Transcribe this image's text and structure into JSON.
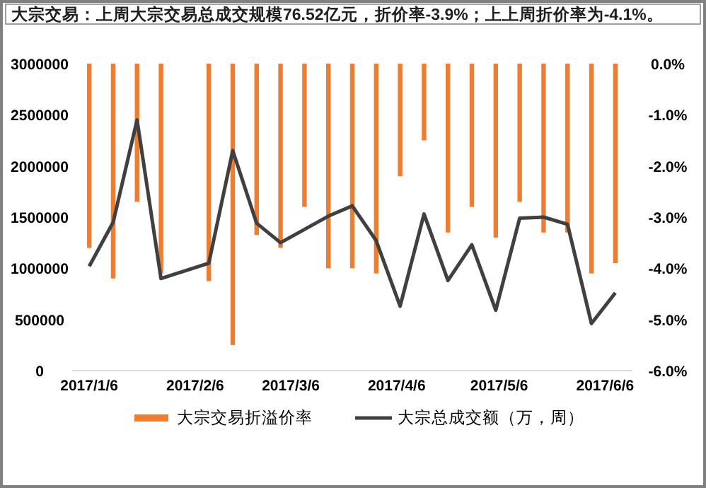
{
  "chart_data": {
    "type": "bar",
    "title": "大宗交易：上周大宗交易总成交规模76.52亿元，折价率-3.9%；上上周折价率为-4.1%。",
    "x": [
      "2017-01-06",
      "2017-01-13",
      "2017-01-20",
      "2017-01-27",
      "2017-02-10",
      "2017-02-17",
      "2017-02-24",
      "2017-03-03",
      "2017-03-10",
      "2017-03-17",
      "2017-03-24",
      "2017-03-31",
      "2017-04-07",
      "2017-04-14",
      "2017-04-21",
      "2017-04-28",
      "2017-05-05",
      "2017-05-12",
      "2017-05-19",
      "2017-05-26",
      "2017-06-02",
      "2017-06-09"
    ],
    "series": [
      {
        "name": "大宗交易折溢价率",
        "axis": "y2",
        "color": "#ed7d31",
        "values": [
          -3.6,
          -4.2,
          -2.7,
          -4.1,
          -4.25,
          -5.5,
          -3.35,
          -3.6,
          -2.8,
          -4.0,
          -4.0,
          -4.1,
          -2.2,
          -1.5,
          -3.3,
          -2.8,
          -3.4,
          -2.7,
          -3.3,
          -3.3,
          -4.1,
          -3.9
        ]
      },
      {
        "name": "大宗总成交额（万，周）",
        "type": "line",
        "axis": "y",
        "color": "#404040",
        "values": [
          1020000,
          1450000,
          2450000,
          900000,
          1050000,
          2150000,
          1440000,
          1250000,
          1380000,
          1510000,
          1610000,
          1270000,
          630000,
          1530000,
          880000,
          1230000,
          590000,
          1490000,
          1500000,
          1430000,
          460000,
          760000
        ]
      }
    ],
    "xlim": [
      "2017-01-01",
      "2017-06-14"
    ],
    "xticks": [
      {
        "value": "2017-01-06",
        "label": "2017/1/6"
      },
      {
        "value": "2017-02-06",
        "label": "2017/2/6"
      },
      {
        "value": "2017-03-06",
        "label": "2017/3/6"
      },
      {
        "value": "2017-04-06",
        "label": "2017/4/6"
      },
      {
        "value": "2017-05-06",
        "label": "2017/5/6"
      },
      {
        "value": "2017-06-06",
        "label": "2017/6/6"
      }
    ],
    "ylim": [
      0,
      3000000
    ],
    "yticks": [
      0,
      500000,
      1000000,
      1500000,
      2000000,
      2500000,
      3000000
    ],
    "y2lim": [
      -6,
      0
    ],
    "y2ticks": [
      {
        "value": -6,
        "label": "-6.0%"
      },
      {
        "value": -5,
        "label": "-5.0%"
      },
      {
        "value": -4,
        "label": "-4.0%"
      },
      {
        "value": -3,
        "label": "-3.0%"
      },
      {
        "value": -2,
        "label": "-2.0%"
      },
      {
        "value": -1,
        "label": "-1.0%"
      },
      {
        "value": 0,
        "label": "0.0%"
      }
    ],
    "legend": "bottom",
    "grid": false
  }
}
